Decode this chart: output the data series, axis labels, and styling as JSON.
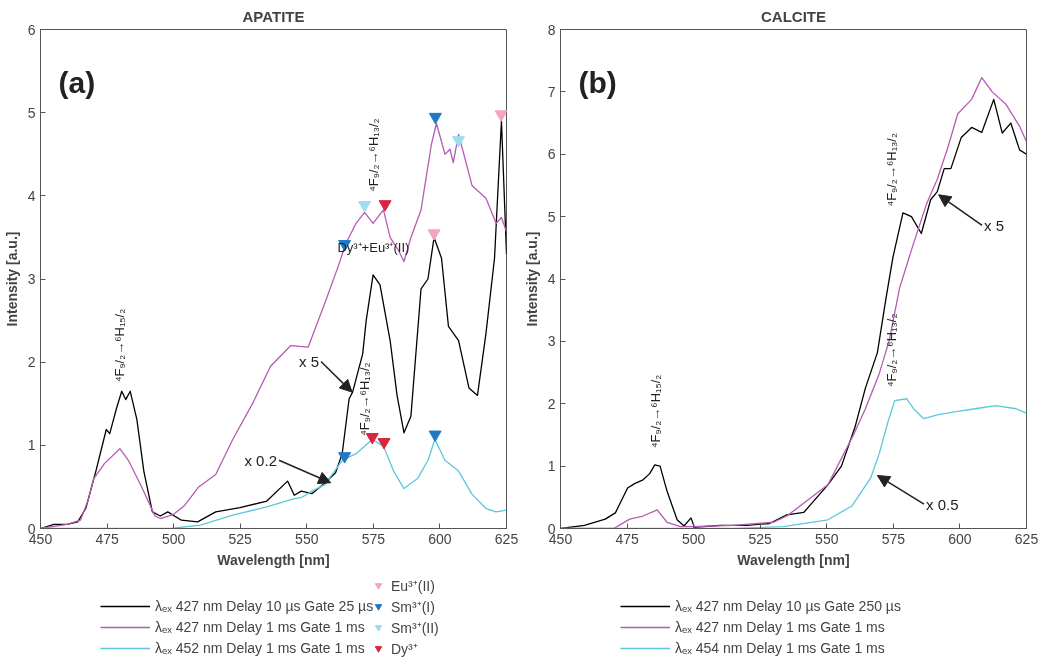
{
  "chart_data": [
    {
      "type": "line",
      "title": "APATITE",
      "xlabel": "Wavelength [nm]",
      "ylabel": "Intensity [a.u.]",
      "xlim": [
        450,
        625
      ],
      "ylim": [
        0,
        6
      ],
      "xticks": [
        450,
        475,
        500,
        525,
        550,
        575,
        600,
        625
      ],
      "yticks": [
        0,
        1,
        2,
        3,
        4,
        5,
        6
      ],
      "grid": false,
      "legend": "bottom",
      "series": [
        {
          "name": "λₑₓ 427 nm Delay 10 µs Gate 25 µs",
          "color": "#000000",
          "x": [
            450,
            455,
            460,
            464,
            467,
            470.8,
            474.7,
            476,
            478.5,
            480.5,
            482,
            483.7,
            486.2,
            488.8,
            492,
            495,
            497.8,
            502.9,
            509,
            515.8,
            524.9,
            535,
            542.8,
            545.3,
            547.9,
            552,
            556.9,
            560.8,
            563.3,
            565.9,
            567.2,
            571,
            572.3,
            574.9,
            577.5,
            581.3,
            583.9,
            586.5,
            589.1,
            592.9,
            595.5,
            597.8,
            600.6,
            603.2,
            607,
            610.9,
            614.1,
            617.3,
            620.5,
            623.1,
            625
          ],
          "values": [
            0,
            0.05,
            0.05,
            0.08,
            0.24,
            0.69,
            1.19,
            1.14,
            1.44,
            1.65,
            1.55,
            1.65,
            1.31,
            0.69,
            0.2,
            0.15,
            0.2,
            0.1,
            0.08,
            0.2,
            0.25,
            0.33,
            0.57,
            0.4,
            0.45,
            0.42,
            0.55,
            0.67,
            0.9,
            1.56,
            1.64,
            2.1,
            2.5,
            3.05,
            2.93,
            2.26,
            1.6,
            1.15,
            1.35,
            2.88,
            3.0,
            3.5,
            3.25,
            2.43,
            2.26,
            1.69,
            1.6,
            2.35,
            3.25,
            4.9,
            3.3
          ]
        },
        {
          "name": "λₑₓ 427 nm Delay 1 ms Gate 1 ms",
          "color": "#b45cb4",
          "x": [
            450,
            460,
            465,
            468,
            470,
            474,
            479.8,
            483,
            488,
            493,
            495,
            500,
            504.2,
            509.4,
            515.8,
            522.2,
            529.9,
            536.4,
            544,
            550.5,
            556.9,
            562,
            564.6,
            568.5,
            571.7,
            574.9,
            578.8,
            581.3,
            584.5,
            586.5,
            589.1,
            592.9,
            596.8,
            598.7,
            601.9,
            603.8,
            605,
            607,
            612.1,
            617.3,
            621.1,
            623.1,
            625
          ],
          "values": [
            0,
            0.05,
            0.1,
            0.35,
            0.6,
            0.78,
            0.96,
            0.82,
            0.5,
            0.15,
            0.12,
            0.17,
            0.28,
            0.5,
            0.65,
            1.07,
            1.52,
            1.95,
            2.2,
            2.18,
            2.72,
            3.17,
            3.42,
            3.67,
            3.8,
            3.67,
            3.83,
            3.5,
            3.34,
            3.21,
            3.5,
            3.83,
            4.62,
            4.87,
            4.5,
            4.56,
            4.4,
            4.74,
            4.12,
            3.97,
            3.67,
            3.74,
            3.57
          ]
        },
        {
          "name": "λₑₓ 452 nm Delay 1 ms Gate 1 ms",
          "color": "#5bc8dc",
          "x": [
            450,
            499,
            510,
            522.2,
            535,
            545.3,
            547.9,
            552,
            556.9,
            563.3,
            568.5,
            574.6,
            578.8,
            582.6,
            586.5,
            591.6,
            595.5,
            598.1,
            601.9,
            607,
            612.1,
            617.3,
            621.1,
            625
          ],
          "values": [
            0,
            0,
            0.04,
            0.16,
            0.26,
            0.36,
            0.37,
            0.45,
            0.53,
            0.82,
            0.9,
            1.07,
            0.99,
            0.69,
            0.48,
            0.6,
            0.82,
            1.07,
            0.82,
            0.69,
            0.41,
            0.24,
            0.2,
            0.22
          ]
        },
        {
          "type": "scatter",
          "marker": "triangle",
          "name": "Eu³⁺(II)",
          "color": "#f4a3c4",
          "x": [
            623,
            597.8
          ],
          "values": [
            4.98,
            3.55
          ]
        },
        {
          "type": "scatter",
          "marker": "triangle",
          "name": "Sm³⁺(I)",
          "color": "#1f78c1",
          "x": [
            598.3,
            564.2,
            564.2,
            598.2
          ],
          "values": [
            4.95,
            3.42,
            0.87,
            1.13
          ]
        },
        {
          "type": "scatter",
          "marker": "triangle",
          "name": "Sm³⁺(II)",
          "color": "#9edcf0",
          "x": [
            571.7,
            607
          ],
          "values": [
            3.89,
            4.67
          ]
        },
        {
          "type": "scatter",
          "marker": "triangle",
          "name": "Dy³⁺",
          "color": "#d7263d",
          "x": [
            579.4,
            574.6,
            579
          ],
          "values": [
            3.9,
            1.1,
            1.04
          ]
        }
      ],
      "annotations": [
        "(a)",
        "⁴F₉/₂→⁶H₁₅/₂",
        {
          "text": "Dy³⁺+Eu³⁺(II)",
          "x": 575,
          "y": 3.05
        },
        "⁴F₉/₂→⁶H₁₃/₂",
        "⁴F₉/₂→⁶H₁₃/₂",
        {
          "text": "x 5",
          "x": 567,
          "y": 1.64
        },
        {
          "text": "x 0.2",
          "x": 559,
          "y": 0.55
        }
      ]
    },
    {
      "type": "line",
      "title": "CALCITE",
      "xlabel": "Wavelength [nm]",
      "ylabel": "Intensity [a.u.]",
      "xlim": [
        450,
        625
      ],
      "ylim": [
        0,
        8
      ],
      "xticks": [
        450,
        475,
        500,
        525,
        550,
        575,
        600,
        625
      ],
      "yticks": [
        0,
        1,
        2,
        3,
        4,
        5,
        6,
        7,
        8
      ],
      "grid": false,
      "legend": "bottom",
      "series": [
        {
          "name": "λₑₓ 427 nm Delay 10 µs Gate 250 µs",
          "color": "#000000",
          "x": [
            450,
            459,
            466.8,
            470.6,
            475.2,
            477.8,
            481,
            483.5,
            485.4,
            487.4,
            490,
            493.8,
            496.4,
            499,
            500.3,
            510,
            520,
            528.5,
            535,
            541.4,
            550.4,
            555.5,
            560.7,
            564.5,
            569,
            572.2,
            574.8,
            578.6,
            581.8,
            585.5,
            589,
            591.5,
            594.1,
            596.6,
            600.5,
            604.4,
            608.2,
            612.7,
            615.9,
            619.1,
            622.4,
            625
          ],
          "values": [
            0,
            0.05,
            0.15,
            0.25,
            0.65,
            0.72,
            0.78,
            0.88,
            1.02,
            1.0,
            0.6,
            0.14,
            0.04,
            0.17,
            0.02,
            0.05,
            0.05,
            0.08,
            0.22,
            0.26,
            0.7,
            1.0,
            1.64,
            2.25,
            2.82,
            3.68,
            4.34,
            5.06,
            5.0,
            4.73,
            5.27,
            5.4,
            5.77,
            5.77,
            6.27,
            6.43,
            6.35,
            6.88,
            6.34,
            6.5,
            6.07,
            6.0
          ]
        },
        {
          "name": "λₑₓ 427 nm Delay 1 ms Gate 1 ms",
          "color": "#b45cb4",
          "x": [
            450,
            470,
            472,
            476,
            481,
            486.3,
            490,
            495,
            500,
            515,
            530,
            535,
            550.4,
            560,
            564.5,
            569.6,
            573.5,
            577.3,
            582.5,
            587.6,
            591.5,
            595.4,
            599.2,
            604.4,
            608.2,
            612.1,
            617.3,
            622.4,
            625
          ],
          "values": [
            0,
            0,
            0.05,
            0.15,
            0.2,
            0.3,
            0.1,
            0.03,
            0.03,
            0.05,
            0.1,
            0.2,
            0.7,
            1.5,
            1.92,
            2.47,
            3.02,
            3.85,
            4.56,
            5.22,
            5.6,
            6.1,
            6.65,
            6.88,
            7.23,
            7.0,
            6.8,
            6.45,
            6.2
          ]
        },
        {
          "name": "λₑₓ 454 nm Delay 1 ms Gate 1 ms",
          "color": "#5bc8dc",
          "x": [
            450,
            515,
            533.7,
            550.4,
            559.4,
            566.5,
            569.7,
            572.9,
            575.5,
            580,
            582.6,
            586.4,
            591.5,
            598,
            605.7,
            613.4,
            621.1,
            625
          ],
          "values": [
            0,
            0,
            0.03,
            0.14,
            0.36,
            0.81,
            1.2,
            1.7,
            2.05,
            2.08,
            1.92,
            1.76,
            1.82,
            1.87,
            1.92,
            1.97,
            1.92,
            1.85
          ]
        }
      ],
      "annotations": [
        "(b)",
        "⁴F₉/₂→⁶H₁₅/₂",
        "⁴F₉/₂→⁶H₁₃/₂",
        "⁴F₉/₂→⁶H₁₃/₂",
        {
          "text": "x 5",
          "x": 592,
          "y": 5.35
        },
        {
          "text": "x 0.5",
          "x": 569,
          "y": 0.85
        }
      ]
    }
  ]
}
